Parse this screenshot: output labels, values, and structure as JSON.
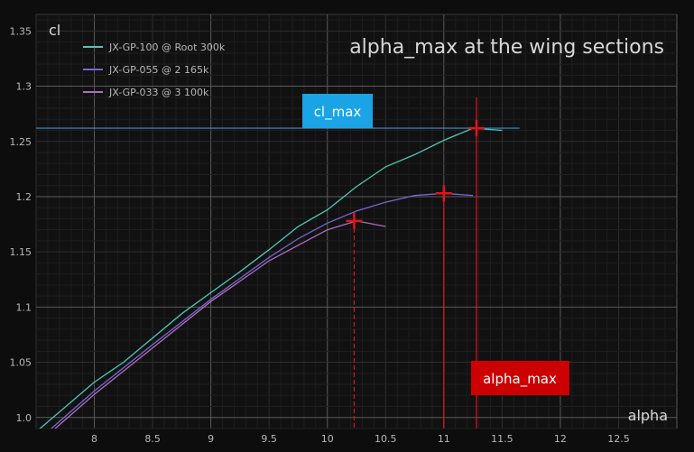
{
  "chart_data": {
    "type": "line",
    "title": "alpha_max at the wing sections",
    "xlabel": "alpha",
    "ylabel": "cl",
    "xlim": [
      7.5,
      13.0
    ],
    "ylim": [
      0.99,
      1.365
    ],
    "x_ticks": [
      "8",
      "8.5",
      "9",
      "9.5",
      "10",
      "10.5",
      "11",
      "11.5",
      "12",
      "12.5"
    ],
    "y_ticks": [
      "1.0",
      "1.05",
      "1.1",
      "1.15",
      "1.2",
      "1.25",
      "1.3",
      "1.35"
    ],
    "grid": true,
    "legend_position": "top-left",
    "series": [
      {
        "name": "JX-GP-100 @ Root 300k",
        "color": "#4fc7b5",
        "x": [
          7.5,
          8.0,
          8.25,
          8.5,
          8.75,
          9.0,
          9.25,
          9.5,
          9.75,
          10.0,
          10.25,
          10.5,
          10.75,
          11.0,
          11.25,
          11.5
        ],
        "y": [
          0.987,
          1.032,
          1.05,
          1.072,
          1.094,
          1.113,
          1.132,
          1.152,
          1.173,
          1.188,
          1.209,
          1.227,
          1.238,
          1.251,
          1.262,
          1.26
        ]
      },
      {
        "name": "JX-GP-055 @ 2 165k",
        "color": "#7766cc",
        "x": [
          7.5,
          8.0,
          8.5,
          9.0,
          9.5,
          9.75,
          10.0,
          10.25,
          10.5,
          10.75,
          11.0,
          11.25
        ],
        "y": [
          0.978,
          1.024,
          1.066,
          1.107,
          1.145,
          1.162,
          1.176,
          1.187,
          1.195,
          1.201,
          1.203,
          1.201
        ]
      },
      {
        "name": "JX-GP-033 @ 3 100k",
        "color": "#b06cc6",
        "x": [
          7.5,
          8.0,
          8.5,
          9.0,
          9.5,
          9.75,
          10.0,
          10.25,
          10.5
        ],
        "y": [
          0.975,
          1.021,
          1.063,
          1.105,
          1.142,
          1.156,
          1.17,
          1.178,
          1.173
        ]
      }
    ],
    "markers": {
      "color": "#e0141c",
      "points": [
        {
          "x": 10.23,
          "y": 1.178,
          "line_style": "dashed"
        },
        {
          "x": 11.0,
          "y": 1.203,
          "line_style": "solid"
        },
        {
          "x": 11.28,
          "y": 1.262,
          "line_style": "solid"
        }
      ]
    },
    "cl_max_line": {
      "y": 1.262,
      "color": "#3d8fd0",
      "x_from": 7.5,
      "x_to": 11.65
    },
    "annotations": [
      {
        "text": "cl_max",
        "background": "#1aa4e6",
        "anchor": "above-cl-max-line"
      },
      {
        "text": "alpha_max",
        "background": "#cc0000",
        "anchor": "below-alpha-max-lines"
      }
    ]
  }
}
